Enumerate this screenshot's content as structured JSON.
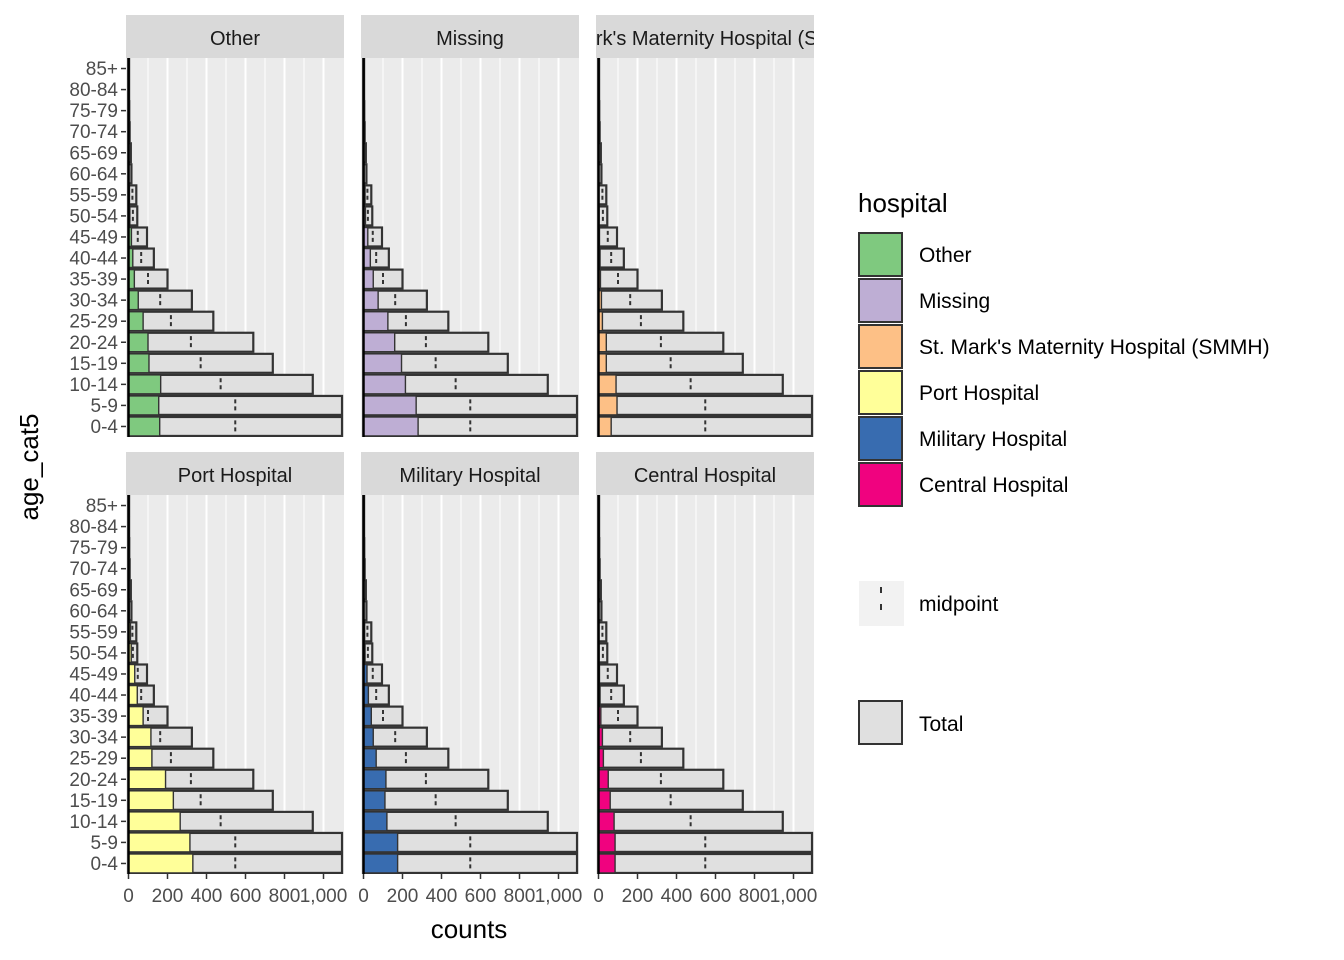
{
  "chart_data": {
    "type": "bar",
    "orientation": "horizontal",
    "xlabel": "counts",
    "ylabel": "age_cat5",
    "xlim": [
      0,
      1100
    ],
    "x_ticks": [
      0,
      200,
      400,
      600,
      800,
      1000
    ],
    "x_tick_labels": [
      "0",
      "200",
      "400",
      "600",
      "800",
      "1,000"
    ],
    "grid": true,
    "legend_position": "right",
    "categories": [
      "0-4",
      "5-9",
      "10-14",
      "15-19",
      "20-24",
      "25-29",
      "30-34",
      "35-39",
      "40-44",
      "45-49",
      "50-54",
      "55-59",
      "60-64",
      "65-69",
      "70-74",
      "75-79",
      "80-84",
      "85+"
    ],
    "total": [
      1095,
      1095,
      945,
      740,
      640,
      435,
      325,
      200,
      130,
      95,
      45,
      40,
      15,
      12,
      6,
      4,
      3,
      3
    ],
    "panels": [
      {
        "name": "Other",
        "color": "#7fc97f",
        "values": [
          160,
          155,
          165,
          105,
          100,
          75,
          50,
          30,
          22,
          15,
          7,
          5,
          2,
          2,
          1,
          0,
          0,
          0
        ]
      },
      {
        "name": "Missing",
        "color": "#beaed4",
        "values": [
          280,
          270,
          215,
          195,
          160,
          125,
          75,
          50,
          35,
          22,
          10,
          8,
          3,
          2,
          1,
          0,
          0,
          0
        ]
      },
      {
        "name": "St. Mark's Maternity Hospital (SMMH)",
        "color": "#fdc086",
        "values": [
          65,
          95,
          90,
          40,
          40,
          20,
          15,
          10,
          8,
          5,
          3,
          2,
          1,
          1,
          0,
          0,
          0,
          0
        ]
      },
      {
        "name": "Port Hospital",
        "color": "#ffff99",
        "values": [
          330,
          315,
          265,
          230,
          190,
          120,
          115,
          75,
          45,
          32,
          14,
          10,
          4,
          3,
          1,
          1,
          0,
          0
        ]
      },
      {
        "name": "Military Hospital",
        "color": "#386cb0",
        "values": [
          175,
          175,
          120,
          110,
          115,
          65,
          50,
          40,
          25,
          18,
          8,
          6,
          2,
          2,
          1,
          0,
          0,
          0
        ]
      },
      {
        "name": "Central Hospital",
        "color": "#f0027f",
        "values": [
          85,
          85,
          80,
          60,
          50,
          25,
          20,
          12,
          8,
          5,
          3,
          2,
          1,
          1,
          0,
          0,
          0,
          0
        ]
      }
    ],
    "legends": {
      "fill_title": "hospital",
      "fill_items": [
        "Other",
        "Missing",
        "St. Mark's Maternity Hospital (SMMH)",
        "Port Hospital",
        "Military Hospital",
        "Central Hospital"
      ],
      "midpoint_label": "midpoint",
      "total_label": "Total",
      "total_color": "#e0e0e0"
    }
  }
}
